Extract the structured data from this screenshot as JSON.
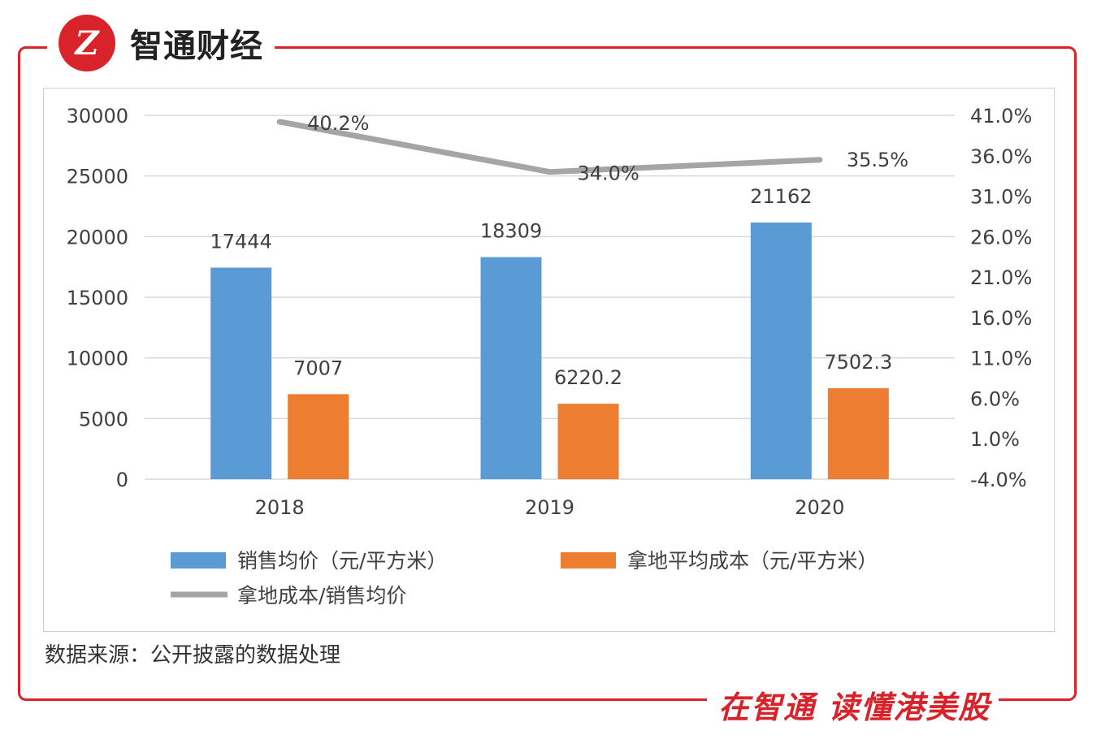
{
  "brand": {
    "logo_text": "Z",
    "name": "智通财经"
  },
  "footer": {
    "source": "数据来源：公开披露的数据处理",
    "slogan": "在智通  读懂港美股"
  },
  "colors": {
    "blue": "#5b9bd5",
    "orange": "#ed7d31",
    "gray": "#a5a5a5",
    "red": "#d8232a"
  },
  "chart_data": {
    "type": "bar",
    "title": "",
    "categories": [
      "2018",
      "2019",
      "2020"
    ],
    "series": [
      {
        "name": "销售均价（元/平方米）",
        "kind": "bar",
        "axis": "left",
        "values": [
          17444,
          18309,
          21162
        ],
        "labels": [
          "17444",
          "18309",
          "21162"
        ]
      },
      {
        "name": "拿地平均成本（元/平方米）",
        "kind": "bar",
        "axis": "left",
        "values": [
          7007,
          6220.2,
          7502.3
        ],
        "labels": [
          "7007",
          "6220.2",
          "7502.3"
        ]
      },
      {
        "name": "拿地成本/销售均价",
        "kind": "line",
        "axis": "right",
        "values": [
          40.2,
          34.0,
          35.5
        ],
        "labels": [
          "40.2%",
          "34.0%",
          "35.5%"
        ]
      }
    ],
    "y_left": {
      "min": 0,
      "max": 30000,
      "ticks": [
        "0",
        "5000",
        "10000",
        "15000",
        "20000",
        "25000",
        "30000"
      ]
    },
    "y_right": {
      "min": -4.0,
      "max": 41.0,
      "ticks": [
        "-4.0%",
        "1.0%",
        "6.0%",
        "11.0%",
        "16.0%",
        "21.0%",
        "26.0%",
        "31.0%",
        "36.0%",
        "41.0%"
      ]
    },
    "grid": true,
    "legend_position": "bottom"
  }
}
